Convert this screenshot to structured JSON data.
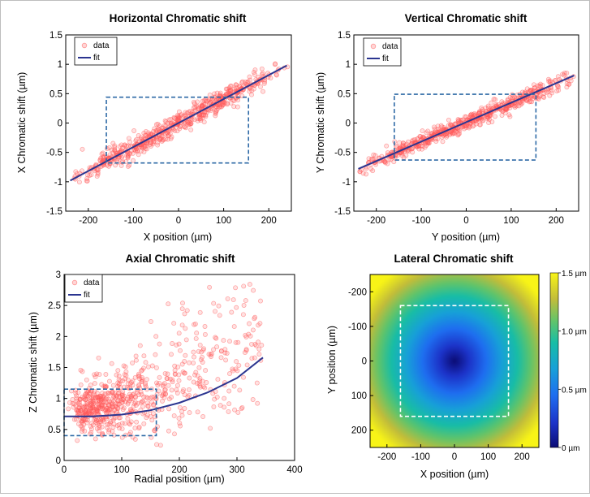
{
  "chart_data": [
    {
      "id": "horizontal",
      "type": "scatter",
      "title": "Horizontal Chromatic shift",
      "xlabel": "X position (µm)",
      "ylabel": "X Chromatic shift (µm)",
      "xlim": [
        -250,
        250
      ],
      "ylim": [
        -1.5,
        1.5
      ],
      "xticks": [
        "-200",
        "-100",
        "0",
        "100",
        "200"
      ],
      "yticks": [
        "-1.5",
        "-1",
        "-0.5",
        "0",
        "0.5",
        "1",
        "1.5"
      ],
      "legend": [
        "data",
        "fit"
      ],
      "legend_position": "top-left",
      "fit_line": {
        "x": [
          -240,
          240
        ],
        "y": [
          -0.98,
          0.98
        ]
      },
      "box": {
        "x": [
          -160,
          155
        ],
        "y": [
          -0.68,
          0.44
        ]
      },
      "data_model": {
        "n": 600,
        "x_range": [
          -240,
          240
        ],
        "slope": 0.0041,
        "intercept": 0,
        "noise": 0.09
      }
    },
    {
      "id": "vertical",
      "type": "scatter",
      "title": "Vertical Chromatic shift",
      "xlabel": "Y position (µm)",
      "ylabel": "Y Chromatic shift (µm)",
      "xlim": [
        -250,
        250
      ],
      "ylim": [
        -1.5,
        1.5
      ],
      "xticks": [
        "-200",
        "-100",
        "0",
        "100",
        "200"
      ],
      "yticks": [
        "-1.5",
        "-1",
        "-0.5",
        "0",
        "0.5",
        "1",
        "1.5"
      ],
      "legend": [
        "data",
        "fit"
      ],
      "legend_position": "top-left",
      "fit_line": {
        "x": [
          -240,
          240
        ],
        "y": [
          -0.78,
          0.81
        ]
      },
      "box": {
        "x": [
          -160,
          155
        ],
        "y": [
          -0.63,
          0.49
        ]
      },
      "data_model": {
        "n": 600,
        "x_range": [
          -240,
          240
        ],
        "slope": 0.0033,
        "intercept": 0.01,
        "noise": 0.07
      }
    },
    {
      "id": "axial",
      "type": "scatter",
      "title": "Axial Chromatic shift",
      "xlabel": "Radial position (µm)",
      "ylabel": "Z Chromatic shift (µm)",
      "xlim": [
        0,
        400
      ],
      "ylim": [
        0,
        3
      ],
      "xticks": [
        "0",
        "100",
        "200",
        "300",
        "400"
      ],
      "yticks": [
        "0",
        "0.5",
        "1",
        "1.5",
        "2",
        "2.5",
        "3"
      ],
      "legend": [
        "data",
        "fit"
      ],
      "legend_position": "top-left",
      "fit_line": {
        "x": [
          0,
          50,
          100,
          150,
          200,
          250,
          300,
          345
        ],
        "y": [
          0.71,
          0.71,
          0.74,
          0.81,
          0.93,
          1.1,
          1.33,
          1.66
        ]
      },
      "box": {
        "x": [
          0,
          160
        ],
        "y": [
          0.4,
          1.15
        ]
      },
      "data_model": {
        "n": 700,
        "x_range": [
          0,
          345
        ],
        "noise_base": 0.18,
        "noise_growth": 0.0022
      }
    },
    {
      "id": "lateral",
      "type": "heatmap",
      "title": "Lateral Chromatic shift",
      "xlabel": "X position (µm)",
      "ylabel": "Y position (µm)",
      "xlim": [
        -250,
        250
      ],
      "ylim": [
        -250,
        250
      ],
      "xticks": [
        "-200",
        "-100",
        "0",
        "100",
        "200"
      ],
      "yticks": [
        "-200",
        "-100",
        "0",
        "100",
        "200"
      ],
      "colorbar": {
        "min": 0,
        "max": 1.5,
        "ticks": [
          "0 µm",
          "0.5 µm",
          "1.0 µm",
          "1.5 µm"
        ]
      },
      "box": {
        "x": [
          -160,
          160
        ],
        "y": [
          -160,
          160
        ]
      },
      "value_model": "sqrt(x^2 + y^2) * 0.0048 µm"
    }
  ],
  "colors": {
    "data": "#ff5a5a",
    "fit": "#2b3590",
    "box_dashed": "#2e6aa6",
    "box_white": "#ffffff"
  }
}
